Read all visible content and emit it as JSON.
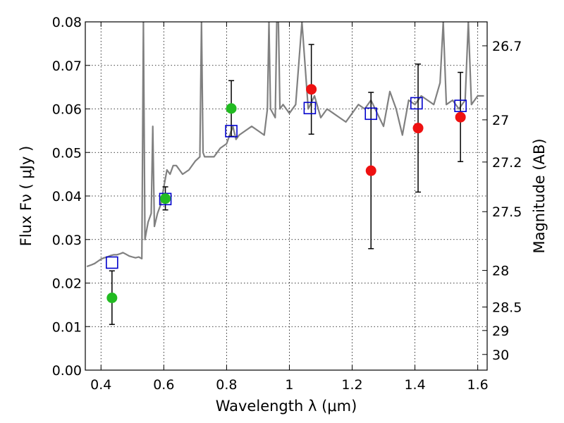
{
  "chart_data": {
    "type": "scatter",
    "xlabel": "Wavelength  λ (μm)",
    "ylabel": "Flux  Fν  ( μJy )",
    "ylabel_right": "Magnitude (AB)",
    "xlim": [
      0.35,
      1.63
    ],
    "ylim": [
      0.0,
      0.08
    ],
    "grid": true,
    "x_ticks": [
      0.4,
      0.6,
      0.8,
      1.0,
      1.2,
      1.4,
      1.6
    ],
    "x_tick_labels": [
      "0.4",
      "0.6",
      "0.8",
      "1",
      "1.2",
      "1.4",
      "1.6"
    ],
    "y_ticks": [
      0.0,
      0.01,
      0.02,
      0.03,
      0.04,
      0.05,
      0.06,
      0.07,
      0.08
    ],
    "y_tick_labels": [
      "0.00",
      "0.01",
      "0.02",
      "0.03",
      "0.04",
      "0.05",
      "0.06",
      "0.07",
      "0.08"
    ],
    "right_ticks": [
      {
        "label": "26.7",
        "flux": 0.0745
      },
      {
        "label": "27",
        "flux": 0.0575
      },
      {
        "label": "27.2",
        "flux": 0.0478
      },
      {
        "label": "27.5",
        "flux": 0.0364
      },
      {
        "label": "28",
        "flux": 0.0229
      },
      {
        "label": "28.5",
        "flux": 0.0145
      },
      {
        "label": "29",
        "flux": 0.0091
      },
      {
        "label": "30",
        "flux": 0.0036
      }
    ],
    "series": [
      {
        "kind": "line",
        "color": "#808080",
        "x": [
          0.355,
          0.37,
          0.38,
          0.39,
          0.4,
          0.41,
          0.42,
          0.43,
          0.44,
          0.45,
          0.46,
          0.47,
          0.48,
          0.49,
          0.5,
          0.51,
          0.52,
          0.53,
          0.535,
          0.54,
          0.545,
          0.55,
          0.56,
          0.565,
          0.57,
          0.58,
          0.59,
          0.6,
          0.61,
          0.62,
          0.63,
          0.64,
          0.65,
          0.66,
          0.68,
          0.7,
          0.715,
          0.72,
          0.725,
          0.73,
          0.74,
          0.76,
          0.78,
          0.8,
          0.81,
          0.82,
          0.83,
          0.84,
          0.86,
          0.88,
          0.9,
          0.92,
          0.93,
          0.935,
          0.94,
          0.955,
          0.96,
          0.965,
          0.97,
          0.98,
          0.99,
          1.0,
          1.02,
          1.04,
          1.06,
          1.08,
          1.1,
          1.12,
          1.14,
          1.16,
          1.18,
          1.2,
          1.22,
          1.24,
          1.26,
          1.28,
          1.3,
          1.32,
          1.34,
          1.36,
          1.38,
          1.4,
          1.42,
          1.44,
          1.46,
          1.48,
          1.49,
          1.5,
          1.52,
          1.54,
          1.56,
          1.57,
          1.58,
          1.6,
          1.62
        ],
        "y": [
          0.0238,
          0.0242,
          0.0245,
          0.025,
          0.0255,
          0.0258,
          0.026,
          0.0263,
          0.0265,
          0.0265,
          0.0267,
          0.027,
          0.0266,
          0.0262,
          0.026,
          0.0258,
          0.026,
          0.0256,
          0.08,
          0.03,
          0.032,
          0.034,
          0.036,
          0.056,
          0.033,
          0.036,
          0.038,
          0.042,
          0.046,
          0.045,
          0.047,
          0.047,
          0.046,
          0.045,
          0.046,
          0.048,
          0.049,
          0.08,
          0.05,
          0.049,
          0.049,
          0.049,
          0.051,
          0.052,
          0.054,
          0.056,
          0.053,
          0.054,
          0.055,
          0.056,
          0.055,
          0.054,
          0.06,
          0.08,
          0.06,
          0.058,
          0.08,
          0.08,
          0.06,
          0.061,
          0.06,
          0.059,
          0.061,
          0.08,
          0.06,
          0.063,
          0.058,
          0.06,
          0.059,
          0.058,
          0.057,
          0.059,
          0.061,
          0.06,
          0.062,
          0.059,
          0.056,
          0.064,
          0.06,
          0.054,
          0.062,
          0.061,
          0.063,
          0.062,
          0.061,
          0.066,
          0.08,
          0.061,
          0.062,
          0.06,
          0.062,
          0.08,
          0.061,
          0.063,
          0.063
        ]
      },
      {
        "kind": "open-square",
        "color": "#0000cc",
        "x": [
          0.435,
          0.605,
          0.815,
          1.065,
          1.26,
          1.405,
          1.545
        ],
        "y": [
          0.0247,
          0.0393,
          0.0549,
          0.0602,
          0.0589,
          0.0613,
          0.0607
        ]
      },
      {
        "kind": "filled-circle",
        "color": "#22bb22",
        "x": [
          0.435,
          0.605,
          0.815
        ],
        "y": [
          0.0166,
          0.0394,
          0.0601
        ]
      },
      {
        "kind": "filled-circle",
        "color": "#ee1111",
        "x": [
          1.07,
          1.26,
          1.41,
          1.545
        ],
        "y": [
          0.0645,
          0.0458,
          0.0556,
          0.0581
        ]
      }
    ],
    "error_bars": [
      {
        "x": 0.435,
        "low": 0.0105,
        "high": 0.0228
      },
      {
        "x": 0.605,
        "low": 0.0368,
        "high": 0.0421
      },
      {
        "x": 0.815,
        "low": 0.0537,
        "high": 0.0665
      },
      {
        "x": 1.07,
        "low": 0.0542,
        "high": 0.0748
      },
      {
        "x": 1.26,
        "low": 0.0279,
        "high": 0.0638
      },
      {
        "x": 1.41,
        "low": 0.0409,
        "high": 0.0703
      },
      {
        "x": 1.545,
        "low": 0.0479,
        "high": 0.0684
      }
    ]
  }
}
